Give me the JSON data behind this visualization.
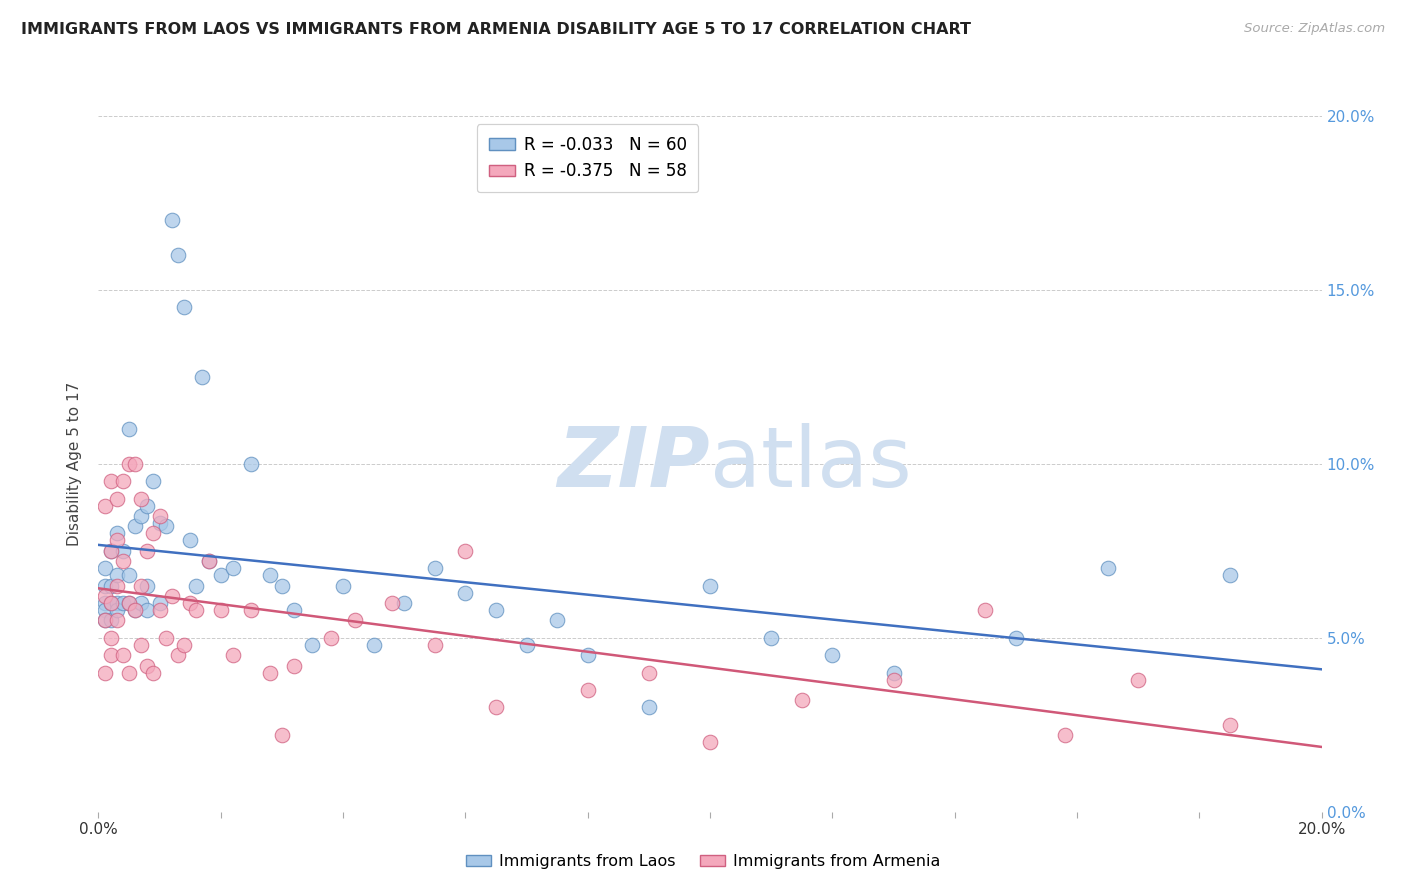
{
  "title": "IMMIGRANTS FROM LAOS VS IMMIGRANTS FROM ARMENIA DISABILITY AGE 5 TO 17 CORRELATION CHART",
  "source_text": "Source: ZipAtlas.com",
  "ylabel": "Disability Age 5 to 17",
  "xlim": [
    0.0,
    0.2
  ],
  "ylim": [
    0.0,
    0.2
  ],
  "yticks": [
    0.0,
    0.05,
    0.1,
    0.15,
    0.2
  ],
  "ytick_labels_right": [
    "0.0%",
    "5.0%",
    "10.0%",
    "15.0%",
    "20.0%"
  ],
  "legend_entry1": "R = -0.033   N = 60",
  "legend_entry2": "R = -0.375   N = 58",
  "legend_label1": "Immigrants from Laos",
  "legend_label2": "Immigrants from Armenia",
  "color_laos": "#a8c8e8",
  "color_armenia": "#f4a8bc",
  "edge_color_laos": "#6090c0",
  "edge_color_armenia": "#d06080",
  "trend_color_laos": "#4070c0",
  "trend_color_armenia": "#d05878",
  "watermark_zip": "ZIP",
  "watermark_atlas": "atlas",
  "watermark_color": "#d0dff0",
  "laos_x": [
    0.001,
    0.001,
    0.001,
    0.001,
    0.001,
    0.002,
    0.002,
    0.002,
    0.002,
    0.003,
    0.003,
    0.003,
    0.003,
    0.004,
    0.004,
    0.005,
    0.005,
    0.005,
    0.006,
    0.006,
    0.007,
    0.007,
    0.008,
    0.008,
    0.008,
    0.009,
    0.01,
    0.01,
    0.011,
    0.012,
    0.013,
    0.014,
    0.015,
    0.016,
    0.017,
    0.018,
    0.02,
    0.022,
    0.025,
    0.028,
    0.03,
    0.032,
    0.035,
    0.04,
    0.045,
    0.05,
    0.055,
    0.06,
    0.065,
    0.07,
    0.075,
    0.08,
    0.09,
    0.1,
    0.11,
    0.12,
    0.13,
    0.15,
    0.165,
    0.185
  ],
  "laos_y": [
    0.065,
    0.07,
    0.06,
    0.058,
    0.055,
    0.075,
    0.065,
    0.06,
    0.055,
    0.08,
    0.068,
    0.06,
    0.058,
    0.075,
    0.06,
    0.11,
    0.068,
    0.06,
    0.082,
    0.058,
    0.085,
    0.06,
    0.088,
    0.065,
    0.058,
    0.095,
    0.083,
    0.06,
    0.082,
    0.17,
    0.16,
    0.145,
    0.078,
    0.065,
    0.125,
    0.072,
    0.068,
    0.07,
    0.1,
    0.068,
    0.065,
    0.058,
    0.048,
    0.065,
    0.048,
    0.06,
    0.07,
    0.063,
    0.058,
    0.048,
    0.055,
    0.045,
    0.03,
    0.065,
    0.05,
    0.045,
    0.04,
    0.05,
    0.07,
    0.068
  ],
  "armenia_x": [
    0.001,
    0.001,
    0.001,
    0.001,
    0.002,
    0.002,
    0.002,
    0.002,
    0.002,
    0.003,
    0.003,
    0.003,
    0.003,
    0.004,
    0.004,
    0.004,
    0.005,
    0.005,
    0.005,
    0.006,
    0.006,
    0.007,
    0.007,
    0.007,
    0.008,
    0.008,
    0.009,
    0.009,
    0.01,
    0.01,
    0.011,
    0.012,
    0.013,
    0.014,
    0.015,
    0.016,
    0.018,
    0.02,
    0.022,
    0.025,
    0.028,
    0.03,
    0.032,
    0.038,
    0.042,
    0.048,
    0.055,
    0.06,
    0.065,
    0.08,
    0.09,
    0.1,
    0.115,
    0.13,
    0.145,
    0.158,
    0.17,
    0.185
  ],
  "armenia_y": [
    0.088,
    0.062,
    0.055,
    0.04,
    0.095,
    0.075,
    0.06,
    0.05,
    0.045,
    0.09,
    0.078,
    0.065,
    0.055,
    0.095,
    0.072,
    0.045,
    0.1,
    0.06,
    0.04,
    0.1,
    0.058,
    0.09,
    0.065,
    0.048,
    0.075,
    0.042,
    0.08,
    0.04,
    0.085,
    0.058,
    0.05,
    0.062,
    0.045,
    0.048,
    0.06,
    0.058,
    0.072,
    0.058,
    0.045,
    0.058,
    0.04,
    0.022,
    0.042,
    0.05,
    0.055,
    0.06,
    0.048,
    0.075,
    0.03,
    0.035,
    0.04,
    0.02,
    0.032,
    0.038,
    0.058,
    0.022,
    0.038,
    0.025
  ]
}
